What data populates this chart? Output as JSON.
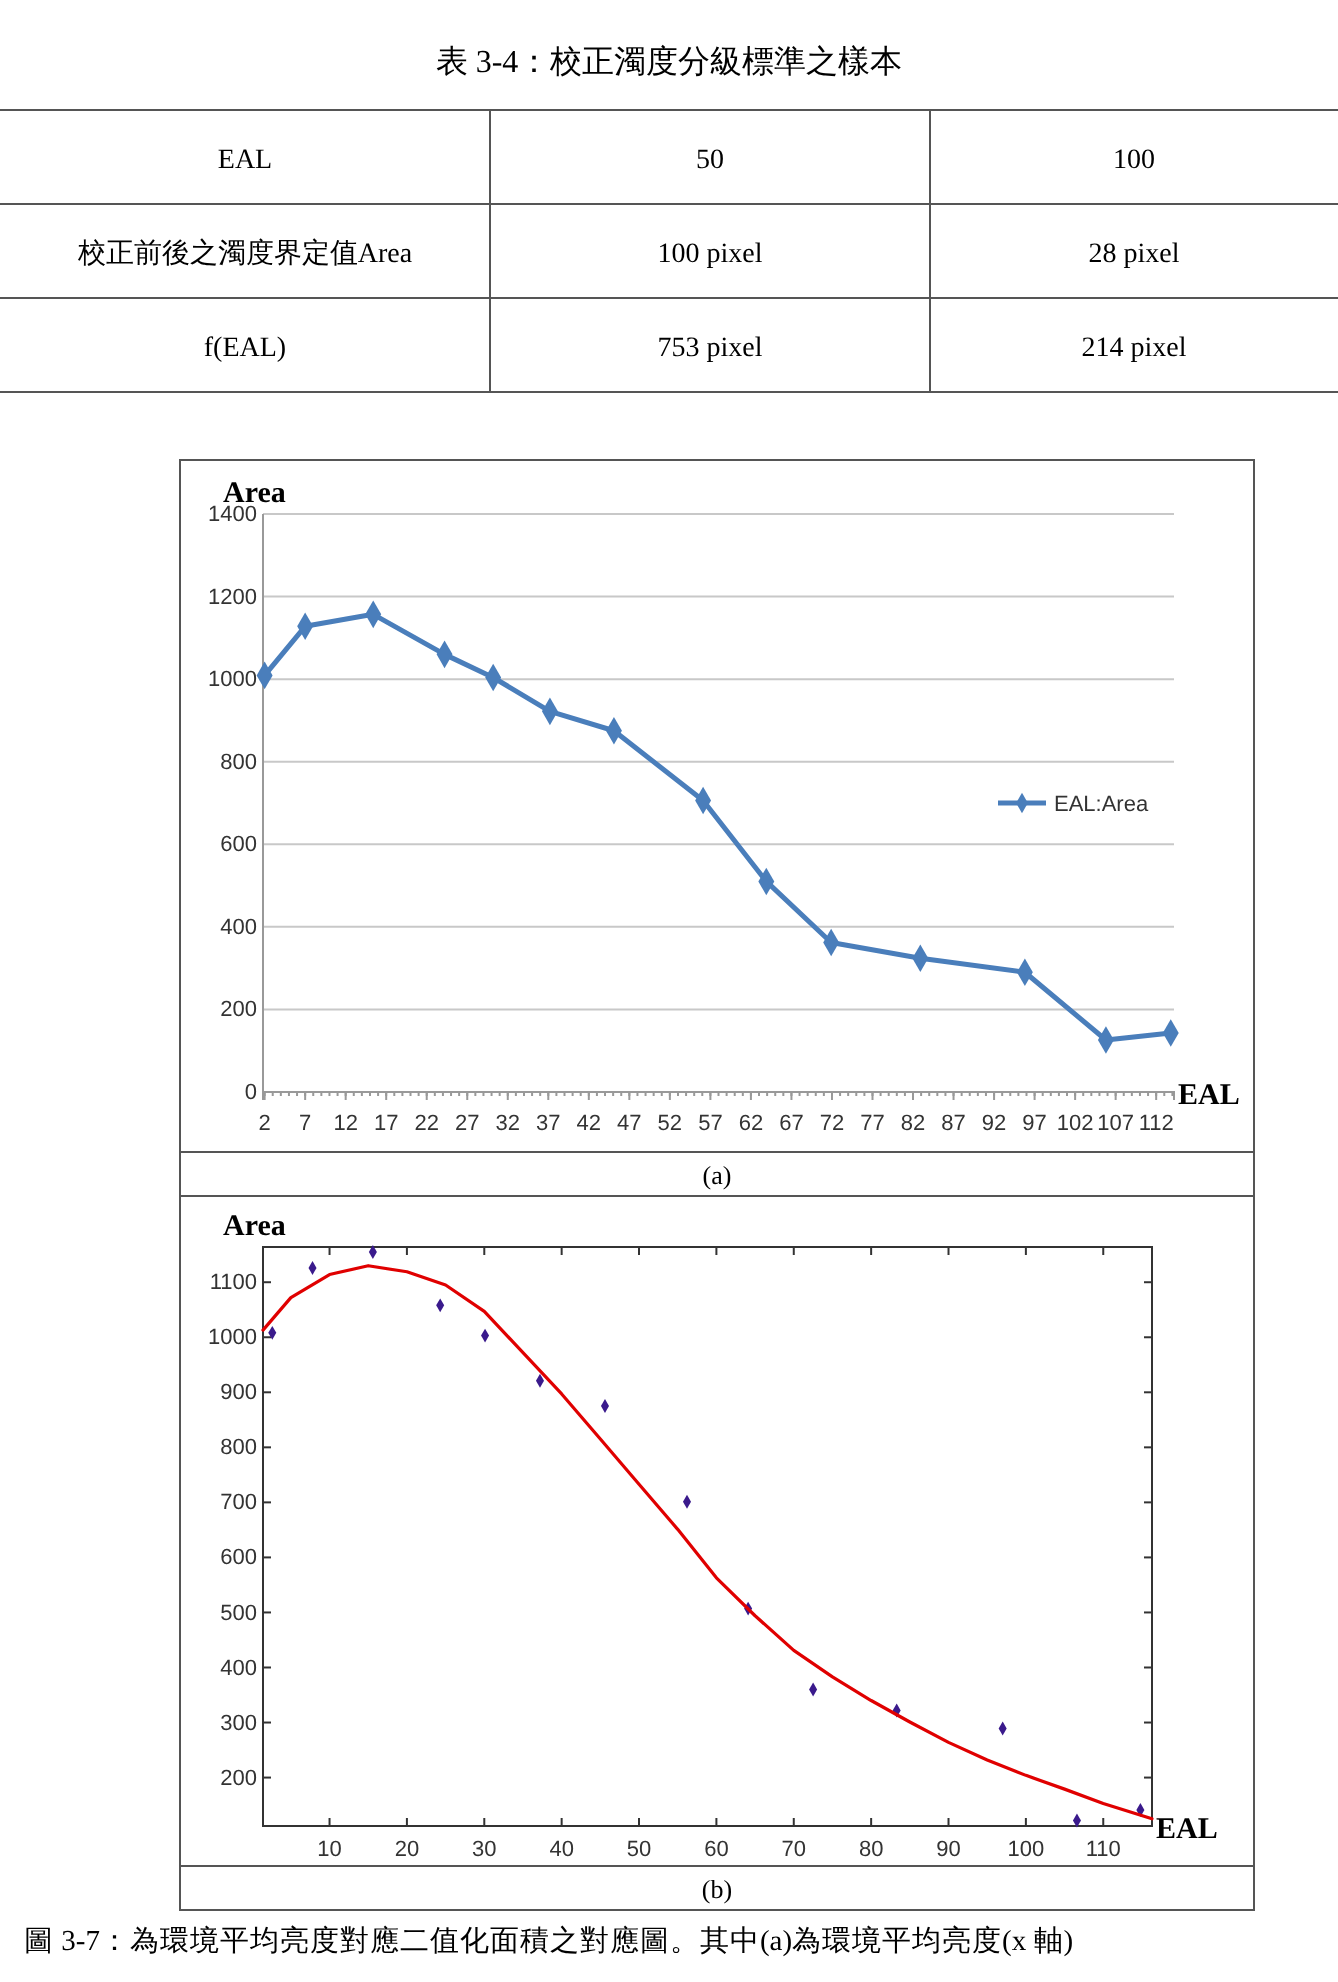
{
  "chart_data": [
    {
      "type": "other",
      "title": "表 3-4：校正濁度分級標準之樣本",
      "annotations": [
        "EAL",
        "50",
        "100",
        "校正前後之濁度界定值Area",
        "100 pixel",
        "28 pixel",
        "f(EAL)",
        "753 pixel",
        "214 pixel"
      ]
    },
    {
      "type": "line",
      "xlabel": "EAL",
      "ylabel": "Area",
      "x": [
        2,
        7,
        15.4,
        24.2,
        30.2,
        37.2,
        45.1,
        56.1,
        63.9,
        71.9,
        82.9,
        95.8,
        105.8,
        113.8
      ],
      "xlim": [
        1.8,
        114.2
      ],
      "xticks": [
        2,
        7,
        12,
        17,
        22,
        27,
        32,
        37,
        42,
        47,
        52,
        57,
        62,
        67,
        72,
        77,
        82,
        87,
        92,
        97,
        102,
        107,
        112
      ],
      "ylim": [
        0,
        1400
      ],
      "yticks": [
        0,
        200,
        400,
        600,
        800,
        1000,
        1200,
        1400
      ],
      "grid": "y",
      "legend": "right",
      "marker": "diamond",
      "line_style": "solid",
      "annotations": [
        "(a)"
      ],
      "series": [
        {
          "name": "EAL:Area",
          "color": "#4a7ebb",
          "values": [
            1009,
            1128,
            1157,
            1060,
            1004,
            922,
            875,
            706,
            510,
            362,
            324,
            290,
            126,
            143
          ]
        }
      ]
    },
    {
      "type": "scatter",
      "xlabel": "EAL",
      "ylabel": "Area",
      "xlim": [
        1.4,
        116.3
      ],
      "xticks": [
        10,
        20,
        30,
        40,
        50,
        60,
        70,
        80,
        90,
        100,
        110
      ],
      "ylim": [
        112,
        1164
      ],
      "yticks": [
        200,
        300,
        400,
        500,
        600,
        700,
        800,
        900,
        1000,
        1100
      ],
      "grid": false,
      "marker": "diamond",
      "annotations": [
        "(b)",
        "圖 3-7：為環境平均亮度對應二值化面積之對應圖。其中(a)為環境平均亮度(x 軸)"
      ],
      "series": [
        {
          "type": "scatter",
          "color": "#3a1a8c",
          "x": [
            2.6,
            7.8,
            15.6,
            24.3,
            30.1,
            37.2,
            45.6,
            56.2,
            64.1,
            72.5,
            83.3,
            97,
            106.6,
            114.8
          ],
          "values": [
            1008,
            1126,
            1155,
            1058,
            1003,
            921,
            875,
            701,
            507,
            360,
            322,
            289,
            122,
            141
          ]
        },
        {
          "type": "line",
          "color": "#e00000",
          "marker": "none",
          "x": [
            1.4,
            5,
            10,
            15,
            20,
            25,
            30,
            35,
            40,
            45,
            50,
            55,
            60,
            65,
            70,
            75,
            80,
            85,
            90,
            95,
            100,
            105,
            110,
            116.3
          ],
          "values": [
            1013,
            1072,
            1114,
            1130,
            1119,
            1095,
            1047,
            972,
            897,
            815,
            733,
            651,
            563,
            494,
            431,
            383,
            340,
            301,
            264,
            232,
            204,
            179,
            153,
            125
          ]
        }
      ]
    }
  ]
}
